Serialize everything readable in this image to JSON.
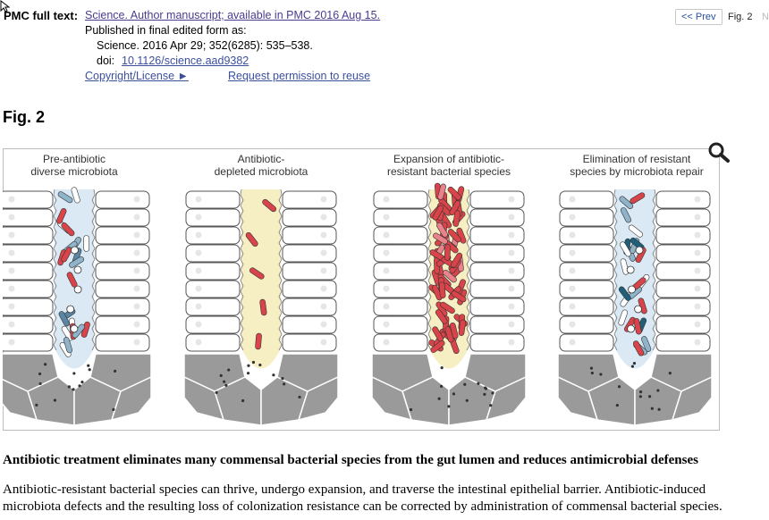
{
  "header": {
    "pmc_label": "PMC full text:",
    "manuscript_link": "Science. Author manuscript; available in PMC 2016 Aug 15.",
    "published_line": "Published in final edited form as:",
    "citation": "Science. 2016 Apr 29; 352(6285): 535–538.",
    "doi_label": "doi:",
    "doi_link": "10.1126/science.aad9382",
    "copyright_link": "Copyright/License ►",
    "permission_link": "Request permission to reuse"
  },
  "nav": {
    "prev_label": "<< Prev",
    "current_fig": "Fig. 2",
    "next_partial": "N"
  },
  "figure": {
    "label": "Fig. 2",
    "zoom_icon": "magnifier-icon",
    "panels": [
      {
        "line1": "Pre-antibiotic",
        "line2": "diverse microbiota"
      },
      {
        "line1": "Antibiotic-",
        "line2": "depleted microbiota"
      },
      {
        "line1": "Expansion of antibiotic-",
        "line2": "resistant bacterial species"
      },
      {
        "line1": "Elimination of resistant",
        "line2": "species by microbiota repair"
      }
    ],
    "colors": {
      "lumen_blue": "#dbe9f4",
      "lumen_yellow": "#f6efc4",
      "bacteria_red": "#d9444a",
      "bacteria_teal": "#1f5f7a",
      "bacteria_light": "#8fb3c9",
      "cell_gray": "#9a9a9a"
    }
  },
  "caption": {
    "title": "Antibiotic treatment eliminates many commensal bacterial species from the gut lumen and reduces antimicrobial defenses",
    "body_line1": "Antibiotic-resistant bacterial species can thrive, undergo expansion, and traverse the intestinal epithelial barrier. Antibiotic-induced",
    "body_line2": "microbiota defects and the resulting loss of colonization resistance can be corrected by administration of commensal bacterial species."
  }
}
